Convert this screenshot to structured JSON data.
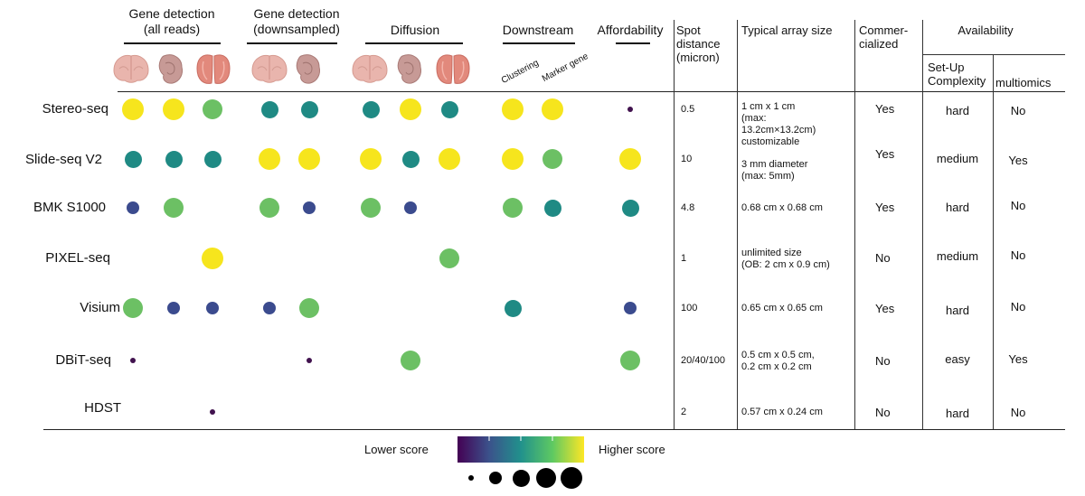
{
  "header": {
    "gene_all": [
      "Gene detection",
      "(all reads)"
    ],
    "gene_down": [
      "Gene detection",
      "(downsampled)"
    ],
    "diffusion": "Diffusion",
    "downstream": "Downstream",
    "affordability": "Affordability",
    "spot": [
      "Spot",
      "distance",
      "(micron)"
    ],
    "array": "Typical array size",
    "commercial": [
      "Commer-",
      "cialized"
    ],
    "availability": "Availability",
    "setup": [
      "Set-Up",
      "Complexity"
    ],
    "multiomics": "multiomics",
    "clustering": "Clustering",
    "marker": "Marker gene"
  },
  "tissue_icons": [
    "mouse-brain-icon",
    "mouse-embryo-icon",
    "olfactory-bulb-icon"
  ],
  "colors": {
    "yellow": "#f6e51d",
    "lightgreen": "#6cc064",
    "teal": "#1f8a84",
    "navy": "#3b4b8e",
    "purple": "#41124e"
  },
  "rows": [
    {
      "name": "Stereo-seq",
      "spot": "0.5",
      "array": [
        "1 cm x 1 cm",
        "(max:",
        "13.2cm×13.2cm)",
        "customizable"
      ],
      "commercial": "Yes",
      "setup": "hard",
      "multiomics": "No",
      "dots": [
        [
          "yellow",
          5
        ],
        [
          "yellow",
          5
        ],
        [
          "lightgreen",
          4
        ],
        [
          "teal",
          3
        ],
        [
          "teal",
          3
        ],
        [
          "teal",
          3
        ],
        [
          "yellow",
          5
        ],
        [
          "teal",
          3
        ],
        [
          "yellow",
          5
        ],
        [
          "yellow",
          5
        ],
        [
          "purple",
          1
        ]
      ]
    },
    {
      "name": "Slide-seq V2",
      "spot": "10",
      "array": [
        "3 mm  diameter",
        "(max: 5mm)"
      ],
      "commercial": "Yes",
      "setup": "medium",
      "multiomics": "Yes",
      "dots": [
        [
          "teal",
          3
        ],
        [
          "teal",
          3
        ],
        [
          "teal",
          3
        ],
        [
          "yellow",
          5
        ],
        [
          "yellow",
          5
        ],
        [
          "yellow",
          5
        ],
        [
          "teal",
          3
        ],
        [
          "yellow",
          5
        ],
        [
          "yellow",
          5
        ],
        [
          "lightgreen",
          4
        ],
        [
          "yellow",
          5
        ]
      ]
    },
    {
      "name": "BMK S1000",
      "spot": "4.8",
      "array": [
        "0.68 cm x 0.68 cm"
      ],
      "commercial": "Yes",
      "setup": "hard",
      "multiomics": "No",
      "dots": [
        [
          "navy",
          2
        ],
        [
          "lightgreen",
          4
        ],
        null,
        [
          "lightgreen",
          4
        ],
        [
          "navy",
          2
        ],
        [
          "lightgreen",
          4
        ],
        [
          "navy",
          2
        ],
        null,
        [
          "lightgreen",
          4
        ],
        [
          "teal",
          3
        ],
        [
          "teal",
          3
        ]
      ]
    },
    {
      "name": "PIXEL-seq",
      "spot": "1",
      "array": [
        "unlimited size",
        "(OB: 2 cm x 0.9 cm)"
      ],
      "commercial": "No",
      "setup": "medium",
      "multiomics": "No",
      "dots": [
        null,
        null,
        [
          "yellow",
          5
        ],
        null,
        null,
        null,
        null,
        [
          "lightgreen",
          4
        ],
        null,
        null,
        null
      ]
    },
    {
      "name": "Visium",
      "spot": "100",
      "array": [
        "0.65 cm x 0.65 cm"
      ],
      "commercial": "Yes",
      "setup": "hard",
      "multiomics": "No",
      "dots": [
        [
          "lightgreen",
          4
        ],
        [
          "navy",
          2
        ],
        [
          "navy",
          2
        ],
        [
          "navy",
          2
        ],
        [
          "lightgreen",
          4
        ],
        null,
        null,
        null,
        [
          "teal",
          3
        ],
        null,
        [
          "navy",
          2
        ]
      ]
    },
    {
      "name": "DBiT-seq",
      "spot": "20/40/100",
      "array": [
        "0.5 cm x 0.5 cm,",
        "0.2 cm x 0.2 cm"
      ],
      "commercial": "No",
      "setup": "easy",
      "multiomics": "Yes",
      "dots": [
        [
          "purple",
          1
        ],
        null,
        null,
        null,
        [
          "purple",
          1
        ],
        null,
        [
          "lightgreen",
          4
        ],
        null,
        null,
        null,
        [
          "lightgreen",
          4
        ]
      ]
    },
    {
      "name": "HDST",
      "spot": "2",
      "array": [
        "0.57 cm x 0.24 cm"
      ],
      "commercial": "No",
      "setup": "hard",
      "multiomics": "No",
      "dots": [
        null,
        null,
        [
          "purple",
          1
        ],
        null,
        null,
        null,
        null,
        null,
        null,
        null,
        null
      ]
    }
  ],
  "legend": {
    "lower": "Lower score",
    "higher": "Higher score",
    "gradient": [
      "#440154",
      "#3b528b",
      "#21918c",
      "#5ec962",
      "#fde725"
    ],
    "sizes": [
      1,
      2,
      3,
      4,
      5
    ]
  }
}
